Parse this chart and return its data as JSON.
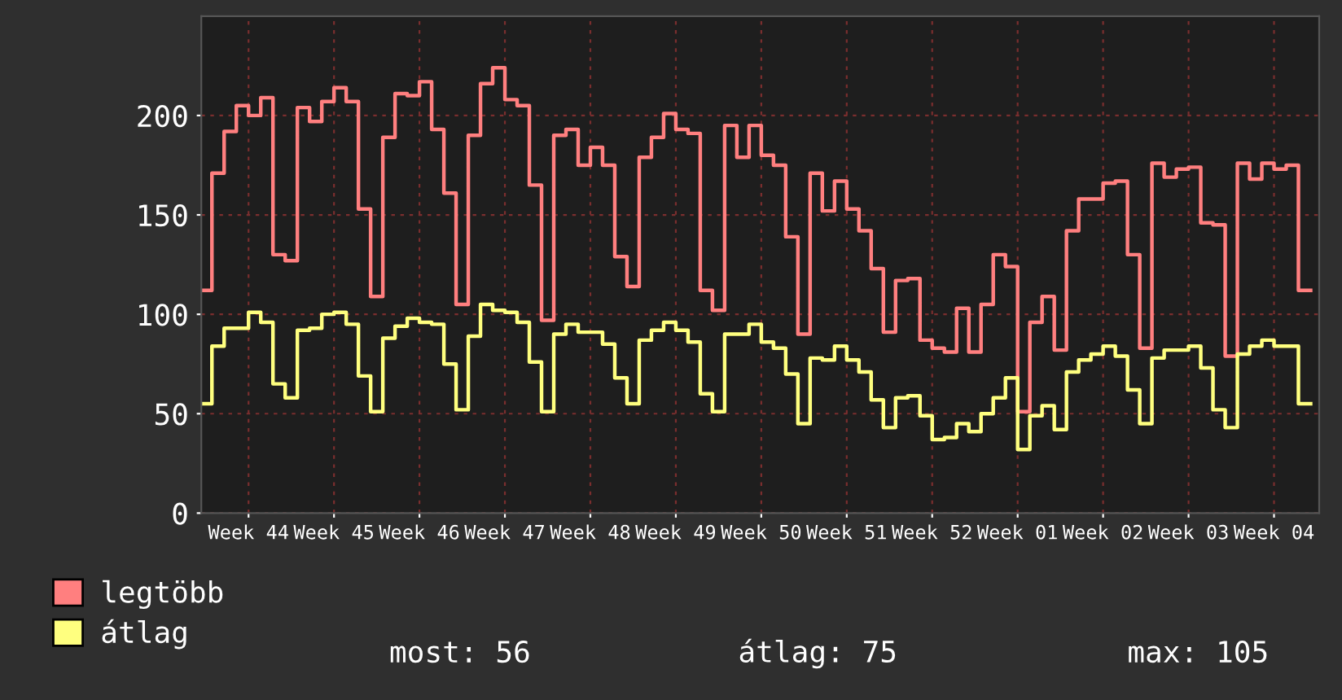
{
  "chart_data": {
    "type": "step",
    "categories": [
      null,
      null,
      null,
      null,
      "Week 44",
      null,
      null,
      null,
      null,
      null,
      null,
      "Week 45",
      null,
      null,
      null,
      null,
      null,
      null,
      "Week 46",
      null,
      null,
      null,
      null,
      null,
      null,
      "Week 47",
      null,
      null,
      null,
      null,
      null,
      null,
      "Week 48",
      null,
      null,
      null,
      null,
      null,
      null,
      "Week 49",
      null,
      null,
      null,
      null,
      null,
      null,
      "Week 50",
      null,
      null,
      null,
      null,
      null,
      null,
      "Week 51",
      null,
      null,
      null,
      null,
      null,
      null,
      "Week 52",
      null,
      null,
      null,
      null,
      null,
      null,
      "Week 01",
      null,
      null,
      null,
      null,
      null,
      null,
      "Week 02",
      null,
      null,
      null,
      null,
      null,
      null,
      "Week 03",
      null,
      null,
      null,
      null,
      null,
      null,
      "Week 04",
      null,
      null,
      null
    ],
    "series": [
      {
        "name": "legtöbb",
        "color": "#ff7f7f",
        "values": [
          112,
          171,
          192,
          205,
          200,
          209,
          130,
          127,
          204,
          197,
          207,
          214,
          207,
          153,
          109,
          189,
          211,
          210,
          217,
          193,
          161,
          105,
          190,
          216,
          224,
          208,
          205,
          165,
          97,
          190,
          193,
          175,
          184,
          175,
          129,
          114,
          179,
          189,
          201,
          193,
          191,
          112,
          102,
          195,
          179,
          195,
          180,
          175,
          139,
          90,
          171,
          152,
          167,
          153,
          142,
          123,
          91,
          117,
          118,
          87,
          83,
          81,
          103,
          81,
          105,
          130,
          124,
          51,
          96,
          109,
          82,
          142,
          158,
          158,
          166,
          167,
          130,
          83,
          176,
          169,
          173,
          174,
          146,
          145,
          79,
          176,
          168,
          176,
          173,
          175,
          112,
          112
        ]
      },
      {
        "name": "átlag",
        "color": "#ffff7f",
        "values": [
          55,
          84,
          93,
          93,
          101,
          96,
          65,
          58,
          92,
          93,
          100,
          101,
          95,
          69,
          51,
          88,
          94,
          98,
          96,
          95,
          75,
          52,
          89,
          105,
          102,
          101,
          96,
          76,
          51,
          90,
          95,
          91,
          91,
          85,
          68,
          55,
          87,
          92,
          96,
          92,
          86,
          60,
          51,
          90,
          90,
          95,
          86,
          83,
          70,
          45,
          78,
          77,
          84,
          77,
          71,
          57,
          43,
          58,
          59,
          49,
          37,
          38,
          45,
          41,
          50,
          58,
          68,
          32,
          49,
          54,
          42,
          71,
          77,
          80,
          84,
          79,
          62,
          45,
          78,
          82,
          82,
          84,
          73,
          52,
          43,
          80,
          84,
          87,
          84,
          84,
          55,
          55
        ]
      }
    ],
    "ylim": [
      0,
      250
    ],
    "yticks": [
      0,
      50,
      100,
      150,
      200
    ],
    "grid": true,
    "legend": "bottom left",
    "line_style": "solid",
    "annotations": [
      "most: 56",
      "átlag: 75",
      "max: 105"
    ]
  }
}
